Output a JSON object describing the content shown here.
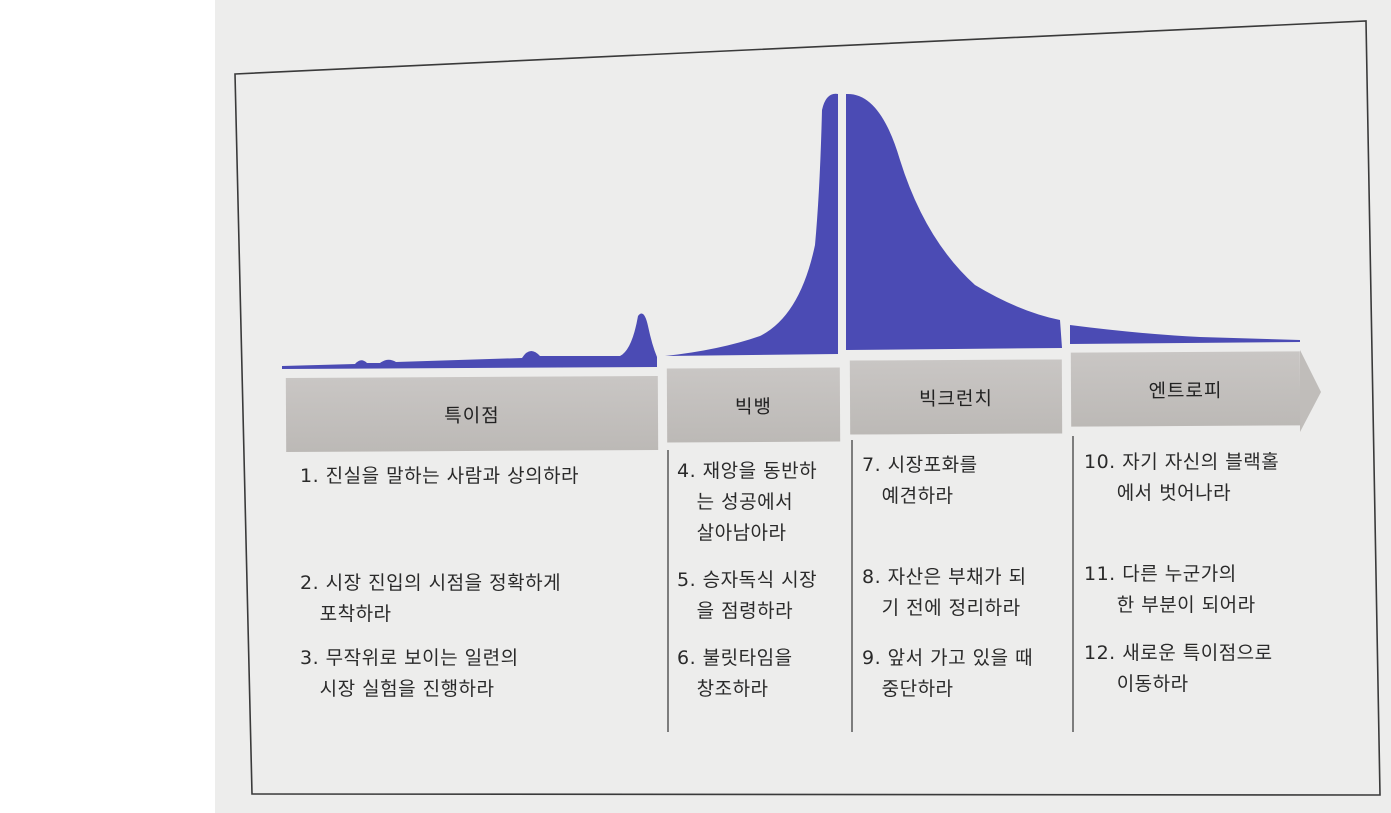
{
  "stages": [
    {
      "label": "특이점"
    },
    {
      "label": "빅뱅"
    },
    {
      "label": "빅크런치"
    },
    {
      "label": "엔트로피"
    }
  ],
  "steps": [
    {
      "text": "1. 진실을 말하는 사람과 상의하라"
    },
    {
      "text": "2. 시장 진입의 시점을 정확하게\n   포착하라"
    },
    {
      "text": "3. 무작위로 보이는 일련의\n   시장 실험을 진행하라"
    },
    {
      "text": "4. 재앙을 동반하\n   는 성공에서\n   살아남아라"
    },
    {
      "text": "5. 승자독식 시장\n   을 점령하라"
    },
    {
      "text": "6. 불릿타임을\n   창조하라"
    },
    {
      "text": "7. 시장포화를\n   예견하라"
    },
    {
      "text": "8. 자산은 부채가 되\n   기 전에 정리하라"
    },
    {
      "text": "9. 앞서 가고 있을 때\n   중단하라"
    },
    {
      "text": "10. 자기 자신의 블랙홀\n     에서 벗어나라"
    },
    {
      "text": "11. 다른 누군가의\n     한 부분이 되어라"
    },
    {
      "text": "12. 새로운 특이점으로\n     이동하라"
    }
  ],
  "colors": {
    "curve": "#4b4bb4",
    "band": "#c4c1be",
    "paper": "#ededec"
  }
}
